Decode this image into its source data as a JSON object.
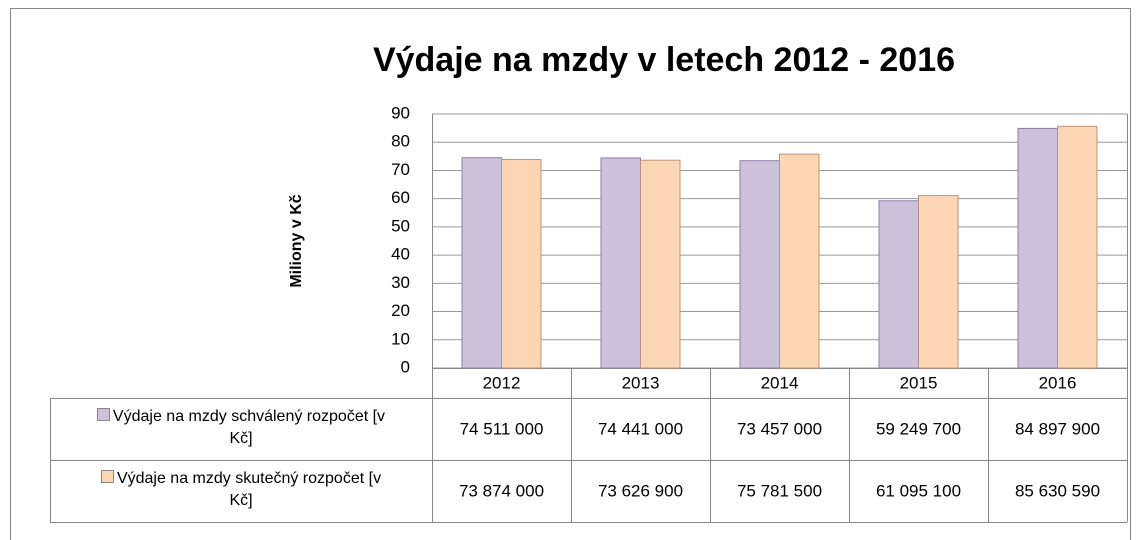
{
  "chart_data": {
    "type": "bar",
    "title": "Výdaje na mzdy v letech 2012 - 2016",
    "y_label": "Miliony v Kč",
    "categories": [
      "2012",
      "2013",
      "2014",
      "2015",
      "2016"
    ],
    "series": [
      {
        "name": "Výdaje na mzdy schválený rozpočet [v Kč]",
        "color": "#ccc0da",
        "values": [
          74.511,
          74.441,
          73.457,
          59.2497,
          84.8979
        ],
        "value_labels": [
          "74 511 000",
          "74 441 000",
          "73 457 000",
          "59 249 700",
          "84 897 900"
        ]
      },
      {
        "name": "Výdaje na mzdy skutečný rozpočet [v Kč]",
        "color": "#fcd5b5",
        "values": [
          73.874,
          73.6269,
          75.7815,
          61.0951,
          85.63059
        ],
        "value_labels": [
          "73 874 000",
          "73 626 900",
          "75 781 500",
          "61 095 100",
          "85 630 590"
        ]
      }
    ],
    "ylim": [
      0,
      90
    ],
    "yticks": [
      0,
      10,
      20,
      30,
      40,
      50,
      60,
      70,
      80,
      90
    ],
    "grid": true
  }
}
